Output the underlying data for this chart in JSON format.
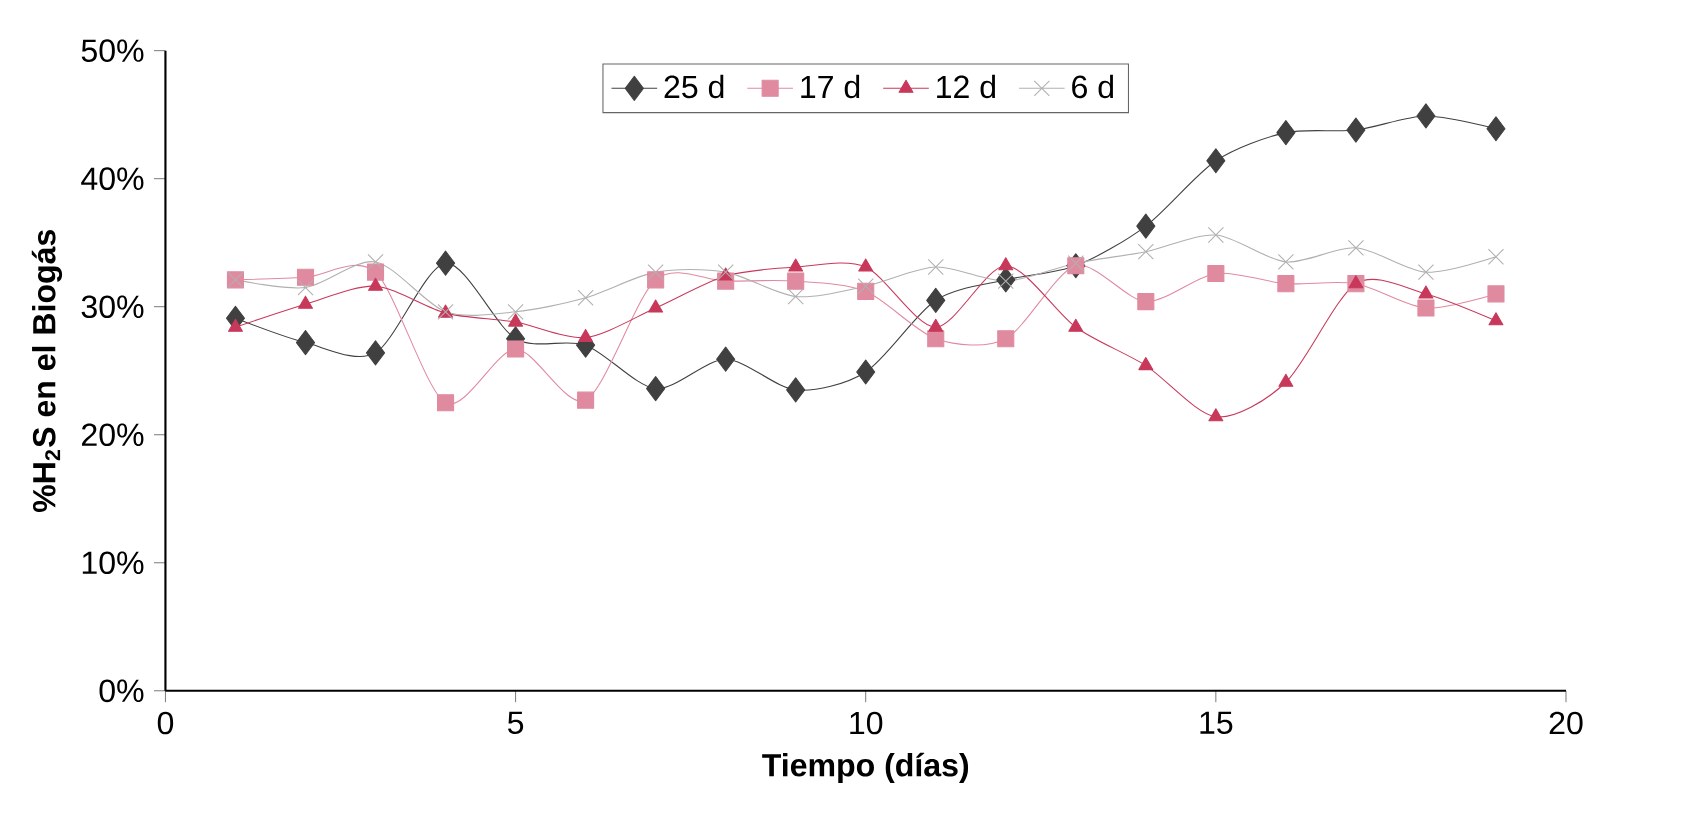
{
  "chart_data": {
    "type": "line",
    "xlabel": "Tiempo (días)",
    "ylabel": "%H$_{2}$S en el Biogás",
    "x": [
      1,
      2,
      3,
      4,
      5,
      6,
      7,
      8,
      9,
      10,
      11,
      12,
      13,
      14,
      15,
      16,
      17,
      18,
      19
    ],
    "xlim": [
      0,
      20
    ],
    "xticks": [
      0,
      5,
      10,
      15,
      20
    ],
    "ylim": [
      0,
      50
    ],
    "yticks": [
      {
        "value": 0,
        "label": "0%"
      },
      {
        "value": 10,
        "label": "10%"
      },
      {
        "value": 20,
        "label": "20%"
      },
      {
        "value": 30,
        "label": "30%"
      },
      {
        "value": 40,
        "label": "40%"
      },
      {
        "value": 50,
        "label": "50%"
      }
    ],
    "legend": "top",
    "grid": false,
    "series": [
      {
        "name": "25 d",
        "color": "#404040",
        "marker": "diamond",
        "values": [
          29.1,
          27.2,
          26.4,
          33.4,
          27.5,
          27.0,
          23.6,
          25.9,
          23.5,
          24.9,
          30.5,
          32.1,
          33.2,
          36.3,
          41.4,
          43.6,
          43.8,
          44.9,
          43.9
        ]
      },
      {
        "name": "17 d",
        "color": "#e08aa0",
        "marker": "square",
        "values": [
          32.1,
          32.3,
          32.7,
          22.5,
          26.7,
          22.7,
          32.1,
          32.0,
          32.0,
          31.2,
          27.5,
          27.5,
          33.2,
          30.4,
          32.6,
          31.8,
          31.8,
          29.9,
          31.0
        ]
      },
      {
        "name": "12 d",
        "color": "#c8385a",
        "marker": "triangle",
        "values": [
          28.4,
          30.2,
          31.6,
          29.5,
          28.8,
          27.6,
          29.9,
          32.4,
          33.1,
          33.1,
          28.4,
          33.2,
          28.4,
          25.4,
          21.4,
          24.1,
          31.8,
          31.0,
          28.9
        ]
      },
      {
        "name": "6 d",
        "color": "#b0b0b0",
        "marker": "cross",
        "values": [
          32.1,
          31.5,
          33.5,
          29.6,
          29.6,
          30.7,
          32.7,
          32.7,
          30.8,
          31.6,
          33.1,
          32.0,
          33.4,
          34.3,
          35.6,
          33.5,
          34.6,
          32.7,
          33.9
        ]
      }
    ]
  }
}
